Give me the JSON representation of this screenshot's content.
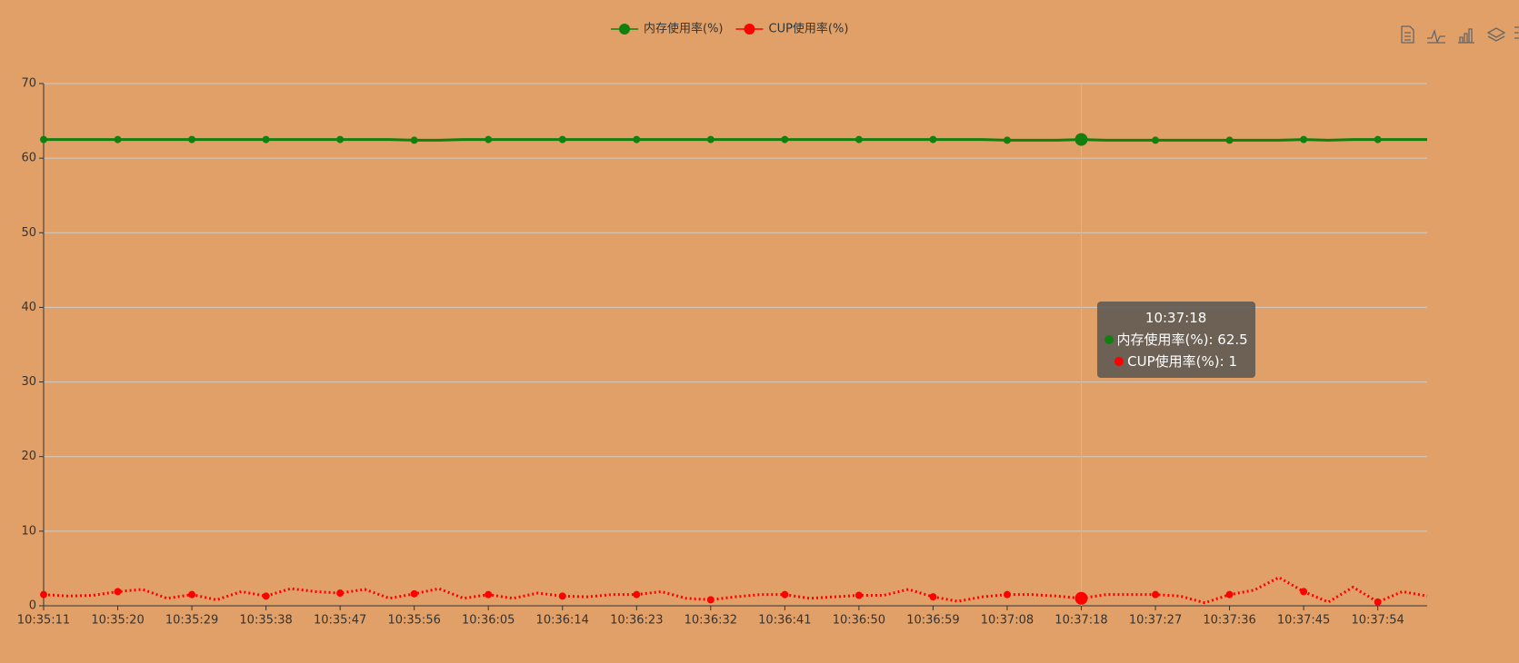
{
  "chart_data": {
    "type": "line",
    "categories": [
      "10:35:11",
      null,
      null,
      "10:35:20",
      null,
      null,
      "10:35:29",
      null,
      null,
      "10:35:38",
      null,
      null,
      "10:35:47",
      null,
      null,
      "10:35:56",
      null,
      null,
      "10:36:05",
      null,
      null,
      "10:36:14",
      null,
      null,
      "10:36:23",
      null,
      null,
      "10:36:32",
      null,
      null,
      "10:36:41",
      null,
      null,
      "10:36:50",
      null,
      null,
      "10:36:59",
      null,
      null,
      "10:37:08",
      null,
      null,
      "10:37:18",
      null,
      null,
      "10:37:27",
      null,
      null,
      "10:37:36",
      null,
      null,
      "10:37:45",
      null,
      null,
      "10:37:54",
      null,
      null
    ],
    "series": [
      {
        "name": "内存使用率(%)",
        "color": "#118011",
        "style": "solid",
        "values": [
          62.5,
          62.5,
          62.5,
          62.5,
          62.5,
          62.5,
          62.5,
          62.5,
          62.5,
          62.5,
          62.5,
          62.5,
          62.5,
          62.5,
          62.5,
          62.4,
          62.4,
          62.5,
          62.5,
          62.5,
          62.5,
          62.5,
          62.5,
          62.5,
          62.5,
          62.5,
          62.5,
          62.5,
          62.5,
          62.5,
          62.5,
          62.5,
          62.5,
          62.5,
          62.5,
          62.5,
          62.5,
          62.5,
          62.5,
          62.4,
          62.4,
          62.4,
          62.5,
          62.4,
          62.4,
          62.4,
          62.4,
          62.4,
          62.4,
          62.4,
          62.4,
          62.5,
          62.4,
          62.5,
          62.5,
          62.5,
          62.5
        ]
      },
      {
        "name": "CUP使用率(%)",
        "color": "#ff0000",
        "style": "dotted",
        "values": [
          1.5,
          1.3,
          1.4,
          1.9,
          2.2,
          1.0,
          1.5,
          0.8,
          1.9,
          1.3,
          2.3,
          1.9,
          1.7,
          2.2,
          1.0,
          1.6,
          2.3,
          1.0,
          1.5,
          1.0,
          1.7,
          1.3,
          1.2,
          1.5,
          1.5,
          1.9,
          1.0,
          0.8,
          1.2,
          1.5,
          1.5,
          1.0,
          1.2,
          1.4,
          1.4,
          2.2,
          1.2,
          0.6,
          1.2,
          1.5,
          1.5,
          1.3,
          1.0,
          1.5,
          1.5,
          1.5,
          1.3,
          0.4,
          1.5,
          2.1,
          3.8,
          1.9,
          0.5,
          2.5,
          0.5,
          1.9,
          1.3
        ]
      }
    ],
    "ylim": [
      0,
      70
    ],
    "yticks": [
      0,
      10,
      20,
      30,
      40,
      50,
      60,
      70
    ],
    "grid": true,
    "legend": "top",
    "tooltip": {
      "title": "10:37:18",
      "lines": [
        "内存使用率(%): 62.5",
        "CUP使用率(%): 1"
      ]
    }
  }
}
